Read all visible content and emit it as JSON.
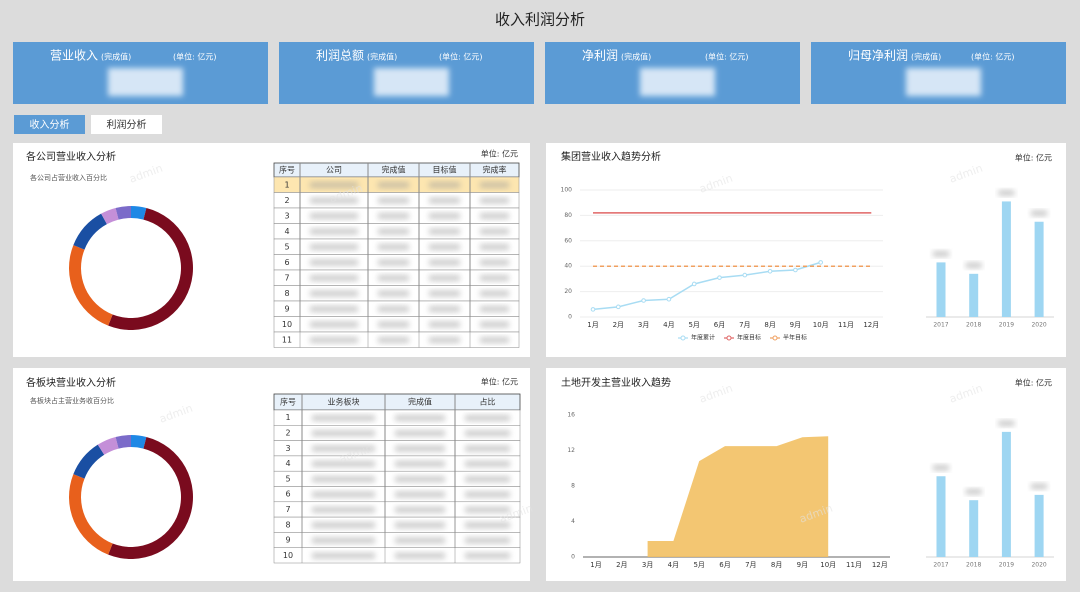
{
  "header": {
    "title": "收入利润分析"
  },
  "kpis": [
    {
      "name": "营业收入",
      "note": "(完成值)",
      "unit": "(单位: 亿元)"
    },
    {
      "name": "利润总额",
      "note": "(完成值)",
      "unit": "(单位: 亿元)"
    },
    {
      "name": "净利润",
      "note": "(完成值)",
      "unit": "(单位: 亿元)"
    },
    {
      "name": "归母净利润",
      "note": "(完成值)",
      "unit": "(单位: 亿元)"
    }
  ],
  "tabs": [
    "收入分析",
    "利润分析"
  ],
  "watermark": "admin",
  "chart_data": [
    {
      "type": "pie",
      "title": "各公司营业收入分析",
      "subtitle": "各公司占营业收入百分比",
      "unit": "单位: 亿元",
      "values": [
        4,
        52,
        25,
        11,
        4,
        4
      ],
      "colors": [
        "#1e88e5",
        "#7a0b1e",
        "#e8601c",
        "#1a4fa3",
        "#c48fd8",
        "#7b6bc9"
      ]
    },
    {
      "type": "line",
      "title": "集团营业收入趋势分析",
      "unit": "单位: 亿元",
      "categories": [
        "1月",
        "2月",
        "3月",
        "4月",
        "5月",
        "6月",
        "7月",
        "8月",
        "9月",
        "10月",
        "11月",
        "12月"
      ],
      "ylim": [
        0,
        100
      ],
      "yticks": [
        0,
        20,
        40,
        60,
        80,
        100
      ],
      "grid": true,
      "series": [
        {
          "name": "年度累计",
          "color": "#a8dcf3",
          "values": [
            6,
            8,
            13,
            14,
            26,
            31,
            33,
            36,
            37,
            43,
            null,
            null
          ]
        },
        {
          "name": "年度目标",
          "color": "#e06666",
          "values": [
            82,
            82,
            82,
            82,
            82,
            82,
            82,
            82,
            82,
            82,
            82,
            82
          ]
        },
        {
          "name": "半年目标",
          "color": "#f0a060",
          "dashed": true,
          "values": [
            40,
            40,
            40,
            40,
            40,
            40,
            40,
            40,
            40,
            40,
            40,
            40
          ]
        }
      ]
    },
    {
      "type": "bar",
      "categories": [
        "2017",
        "2018",
        "2019",
        "2020"
      ],
      "values": [
        43,
        34,
        91,
        75
      ],
      "ylim": [
        0,
        100
      ],
      "color": "#9ed6f2"
    },
    {
      "type": "pie",
      "title": "各板块营业收入分析",
      "subtitle": "各板块占主营业务收百分比",
      "unit": "单位: 亿元",
      "values": [
        4,
        52,
        25,
        10,
        5,
        4
      ],
      "colors": [
        "#1e88e5",
        "#7a0b1e",
        "#e8601c",
        "#1a4fa3",
        "#c48fd8",
        "#7b6bc9"
      ]
    },
    {
      "type": "area",
      "title": "土地开发主营业收入趋势",
      "unit": "单位: 亿元",
      "categories": [
        "1月",
        "2月",
        "3月",
        "4月",
        "5月",
        "6月",
        "7月",
        "8月",
        "9月",
        "10月",
        "11月",
        "12月"
      ],
      "ylim": [
        0,
        16
      ],
      "yticks": [
        0,
        4,
        8,
        12,
        16
      ],
      "series": [
        {
          "name": "收入",
          "color": "#f2c063",
          "values": [
            null,
            null,
            1.8,
            1.8,
            10.8,
            12.5,
            12.5,
            12.5,
            13.5,
            13.6,
            null,
            null
          ]
        }
      ]
    },
    {
      "type": "bar",
      "categories": [
        "2017",
        "2018",
        "2019",
        "2020"
      ],
      "values": [
        9.1,
        6.4,
        14.1,
        7
      ],
      "ylim": [
        0,
        16
      ],
      "color": "#9ed6f2"
    }
  ],
  "tables": [
    {
      "headers": [
        "序号",
        "公司",
        "完成值",
        "目标值",
        "完成率"
      ],
      "row_numbers": [
        1,
        2,
        3,
        4,
        5,
        6,
        7,
        8,
        9,
        10,
        11
      ]
    },
    {
      "headers": [
        "序号",
        "业务板块",
        "完成值",
        "占比"
      ],
      "row_numbers": [
        1,
        2,
        3,
        4,
        5,
        6,
        7,
        8,
        9,
        10
      ]
    }
  ]
}
